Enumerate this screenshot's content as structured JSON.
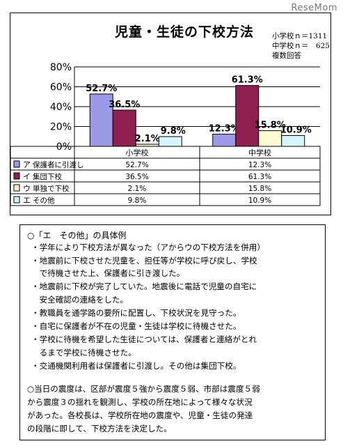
{
  "watermark": "ReseMom",
  "chart_data": {
    "type": "bar",
    "title": "児童・生徒の下校方法",
    "notes": [
      "小学校ｎ＝1311",
      "中学校ｎ＝　625",
      "複数回答"
    ],
    "categories": [
      "小学校",
      "中学校"
    ],
    "ylim": [
      0,
      80
    ],
    "yticks": [
      0,
      20,
      40,
      60,
      80
    ],
    "ytick_labels": [
      "0%",
      "20%",
      "40%",
      "60%",
      "80%"
    ],
    "grid": true,
    "series": [
      {
        "key": "ア",
        "name": "保護者に引渡し",
        "color": "#9a9ae8",
        "values": [
          52.7,
          12.3
        ],
        "labels": [
          "52.7%",
          "12.3%"
        ],
        "table": [
          "52.7%",
          "12.3%"
        ]
      },
      {
        "key": "イ",
        "name": "集団下校",
        "color": "#8f1f4f",
        "values": [
          36.5,
          61.3
        ],
        "labels": [
          "36.5%",
          "61.3%"
        ],
        "table": [
          "36.5%",
          "61.3%"
        ]
      },
      {
        "key": "ウ",
        "name": "単独で下校",
        "color": "#fdfbd2",
        "values": [
          2.1,
          15.8
        ],
        "labels": [
          "2.1%",
          "15.8%"
        ],
        "table": [
          "2.1%",
          "15.8%"
        ]
      },
      {
        "key": "エ",
        "name": "その他",
        "color": "#d7f6fb",
        "values": [
          9.8,
          10.9
        ],
        "labels": [
          "9.8%",
          "10.9%"
        ],
        "table": [
          "9.8%",
          "10.9%"
        ]
      }
    ]
  },
  "text_box": {
    "heading": "○「エ　その他」の具体例",
    "lines": [
      "・学年により下校方法が異なった（アからウの下校方法を併用）",
      "・地震前に下校させた児童を、担任等が学校に呼び戻し、学校",
      "　で待機させた上、保護者に引き渡した。",
      "・地震前に下校が完了していた。地震後に電話で児童の自宅に",
      "　安全確認の連絡をした。",
      "・教職員を通学路の要所に配置し、下校状況を見守った。",
      "・自宅に保護者が不在の児童・生徒は学校に待機させた。",
      "・学校に待機を希望した生徒については、保護者と連絡がとれ",
      "　るまで学校に待機させた。",
      "・交通機関利用者は保護者に引渡し。その他は集団下校。"
    ],
    "paragraph": [
      "○当日の震度は、区部が震度５強から震度５弱、市部は震度５弱",
      "から震度３の揺れを観測し、学校の所在地によって様々な状況",
      "があった。各校長は、学校所在地の震度や、児童・生徒の発達",
      "の段階に即して、下校方法を決定した。"
    ]
  }
}
